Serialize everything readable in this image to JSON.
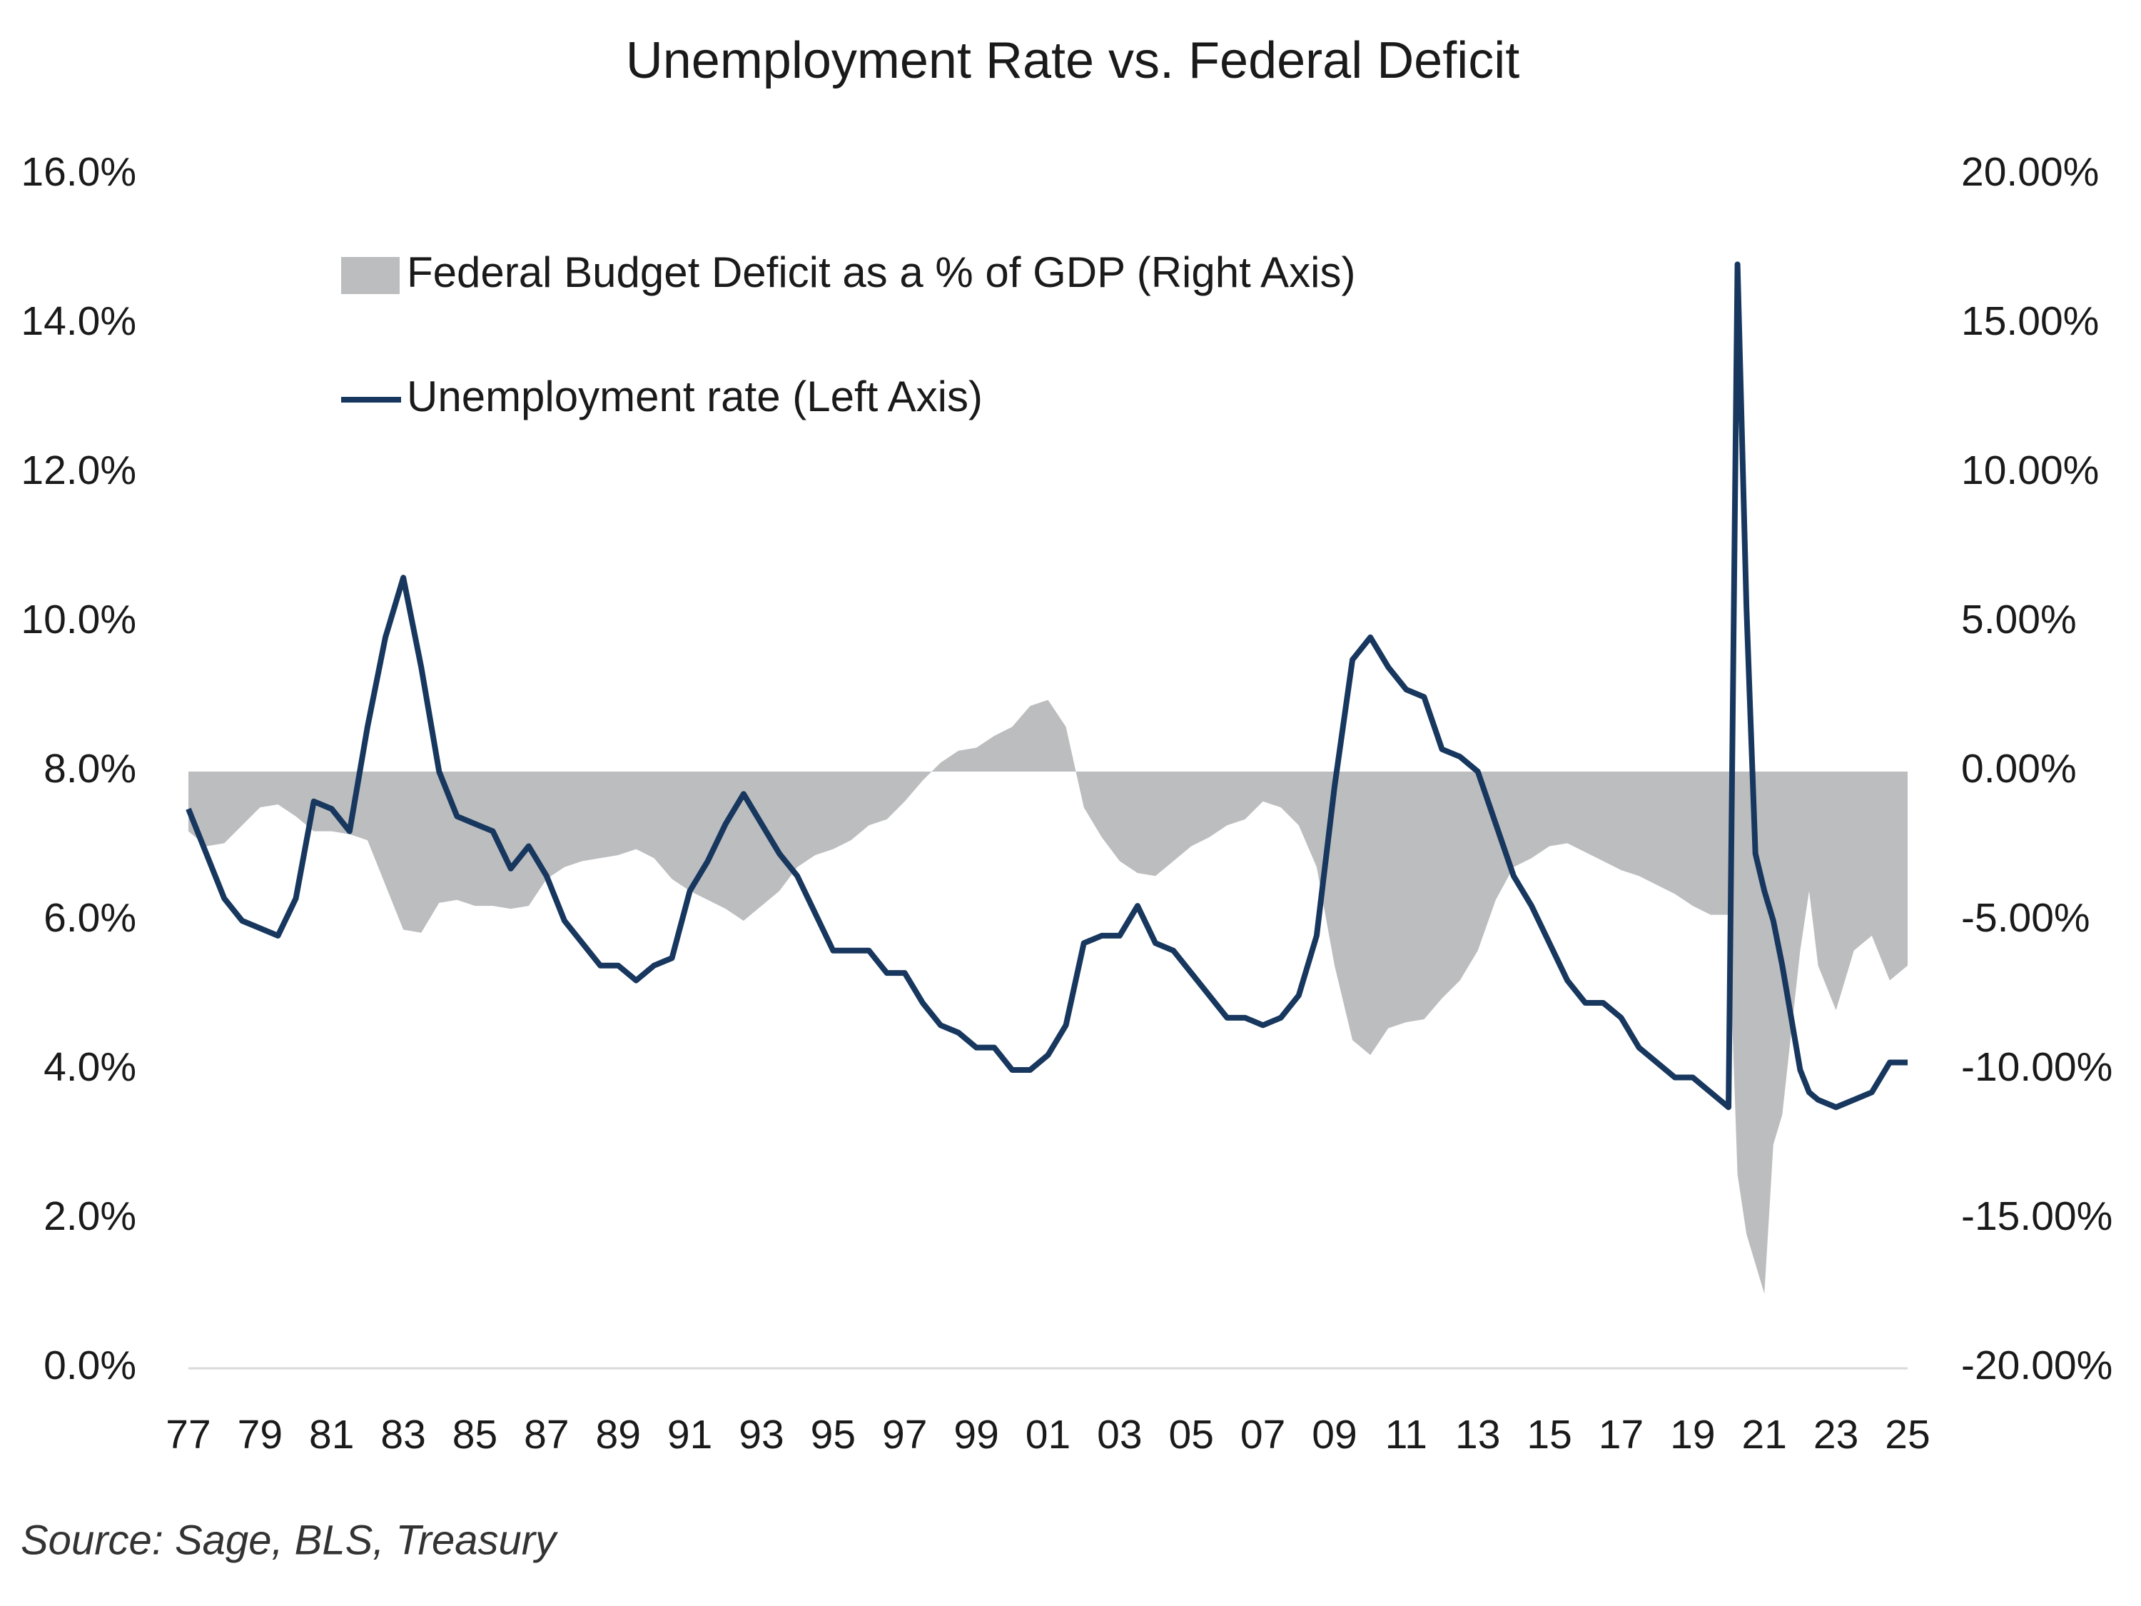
{
  "chart_data": {
    "type": "combo",
    "title": "Unemployment Rate vs. Federal Deficit",
    "source": "Source: Sage, BLS, Treasury",
    "x": [
      1977,
      1977.5,
      1978,
      1978.5,
      1979,
      1979.5,
      1980,
      1980.5,
      1981,
      1981.5,
      1982,
      1982.5,
      1983,
      1983.5,
      1984,
      1984.5,
      1985,
      1985.5,
      1986,
      1986.5,
      1987,
      1987.5,
      1988,
      1988.5,
      1989,
      1989.5,
      1990,
      1990.5,
      1991,
      1991.5,
      1992,
      1992.5,
      1993,
      1993.5,
      1994,
      1994.5,
      1995,
      1995.5,
      1996,
      1996.5,
      1997,
      1997.5,
      1998,
      1998.5,
      1999,
      1999.5,
      2000,
      2000.5,
      2001,
      2001.5,
      2002,
      2002.5,
      2003,
      2003.5,
      2004,
      2004.5,
      2005,
      2005.5,
      2006,
      2006.5,
      2007,
      2007.5,
      2008,
      2008.5,
      2009,
      2009.5,
      2010,
      2010.5,
      2011,
      2011.5,
      2012,
      2012.5,
      2013,
      2013.5,
      2014,
      2014.5,
      2015,
      2015.5,
      2016,
      2016.5,
      2017,
      2017.5,
      2018,
      2018.5,
      2019,
      2019.5,
      2020,
      2020.25,
      2020.5,
      2020.75,
      2021,
      2021.25,
      2021.5,
      2022,
      2022.25,
      2022.5,
      2023,
      2023.5,
      2024,
      2024.5,
      2025
    ],
    "series": [
      {
        "name": "Federal Budget Deficit as a % of GDP (Right Axis)",
        "type": "area",
        "axis": "y2",
        "color": "#bcbdbf",
        "values": [
          -2.0,
          -2.5,
          -2.4,
          -1.8,
          -1.2,
          -1.1,
          -1.5,
          -2.0,
          -2.0,
          -2.1,
          -2.3,
          -3.8,
          -5.3,
          -5.4,
          -4.4,
          -4.3,
          -4.5,
          -4.5,
          -4.6,
          -4.5,
          -3.6,
          -3.2,
          -3.0,
          -2.9,
          -2.8,
          -2.6,
          -2.9,
          -3.6,
          -4.0,
          -4.3,
          -4.6,
          -5.0,
          -4.5,
          -4.0,
          -3.2,
          -2.8,
          -2.6,
          -2.3,
          -1.8,
          -1.6,
          -1.0,
          -0.3,
          0.3,
          0.7,
          0.8,
          1.2,
          1.5,
          2.2,
          2.4,
          1.5,
          -1.2,
          -2.2,
          -3.0,
          -3.4,
          -3.5,
          -3.0,
          -2.5,
          -2.2,
          -1.8,
          -1.6,
          -1.0,
          -1.2,
          -1.8,
          -3.2,
          -6.5,
          -9.0,
          -9.5,
          -8.6,
          -8.4,
          -8.3,
          -7.6,
          -7.0,
          -6.0,
          -4.3,
          -3.2,
          -2.9,
          -2.5,
          -2.4,
          -2.7,
          -3.0,
          -3.3,
          -3.5,
          -3.8,
          -4.1,
          -4.5,
          -4.8,
          -4.8,
          -13.5,
          -15.5,
          -16.5,
          -17.5,
          -12.5,
          -11.5,
          -6.0,
          -4.0,
          -6.5,
          -8.0,
          -6.0,
          -5.5,
          -7.0,
          -6.5
        ]
      },
      {
        "name": "Unemployment rate (Left Axis)",
        "type": "line",
        "axis": "y",
        "color": "#17375e",
        "values": [
          7.5,
          6.9,
          6.3,
          6.0,
          5.9,
          5.8,
          6.3,
          7.6,
          7.5,
          7.2,
          8.6,
          9.8,
          10.6,
          9.4,
          8.0,
          7.4,
          7.3,
          7.2,
          6.7,
          7.0,
          6.6,
          6.0,
          5.7,
          5.4,
          5.4,
          5.2,
          5.4,
          5.5,
          6.4,
          6.8,
          7.3,
          7.7,
          7.3,
          6.9,
          6.6,
          6.1,
          5.6,
          5.6,
          5.6,
          5.3,
          5.3,
          4.9,
          4.6,
          4.5,
          4.3,
          4.3,
          4.0,
          4.0,
          4.2,
          4.6,
          5.7,
          5.8,
          5.8,
          6.2,
          5.7,
          5.6,
          5.3,
          5.0,
          4.7,
          4.7,
          4.6,
          4.7,
          5.0,
          5.8,
          7.8,
          9.5,
          9.8,
          9.4,
          9.1,
          9.0,
          8.3,
          8.2,
          8.0,
          7.3,
          6.6,
          6.2,
          5.7,
          5.2,
          4.9,
          4.9,
          4.7,
          4.3,
          4.1,
          3.9,
          3.9,
          3.7,
          3.5,
          14.8,
          10.2,
          6.9,
          6.4,
          6.0,
          5.4,
          4.0,
          3.7,
          3.6,
          3.5,
          3.6,
          3.7,
          4.1,
          4.1
        ]
      }
    ],
    "xlim": [
      1977,
      2025
    ],
    "xticks": [
      {
        "value": 1977,
        "label": "77"
      },
      {
        "value": 1979,
        "label": "79"
      },
      {
        "value": 1981,
        "label": "81"
      },
      {
        "value": 1983,
        "label": "83"
      },
      {
        "value": 1985,
        "label": "85"
      },
      {
        "value": 1987,
        "label": "87"
      },
      {
        "value": 1989,
        "label": "89"
      },
      {
        "value": 1991,
        "label": "91"
      },
      {
        "value": 1993,
        "label": "93"
      },
      {
        "value": 1995,
        "label": "95"
      },
      {
        "value": 1997,
        "label": "97"
      },
      {
        "value": 1999,
        "label": "99"
      },
      {
        "value": 2001,
        "label": "01"
      },
      {
        "value": 2003,
        "label": "03"
      },
      {
        "value": 2005,
        "label": "05"
      },
      {
        "value": 2007,
        "label": "07"
      },
      {
        "value": 2009,
        "label": "09"
      },
      {
        "value": 2011,
        "label": "11"
      },
      {
        "value": 2013,
        "label": "13"
      },
      {
        "value": 2015,
        "label": "15"
      },
      {
        "value": 2017,
        "label": "17"
      },
      {
        "value": 2019,
        "label": "19"
      },
      {
        "value": 2021,
        "label": "21"
      },
      {
        "value": 2023,
        "label": "23"
      },
      {
        "value": 2025,
        "label": "25"
      }
    ],
    "ylim": [
      0,
      16
    ],
    "yticks": [
      {
        "value": 0,
        "label": "0.0%"
      },
      {
        "value": 2,
        "label": "2.0%"
      },
      {
        "value": 4,
        "label": "4.0%"
      },
      {
        "value": 6,
        "label": "6.0%"
      },
      {
        "value": 8,
        "label": "8.0%"
      },
      {
        "value": 10,
        "label": "10.0%"
      },
      {
        "value": 12,
        "label": "12.0%"
      },
      {
        "value": 14,
        "label": "14.0%"
      },
      {
        "value": 16,
        "label": "16.0%"
      }
    ],
    "y2lim": [
      -20,
      20
    ],
    "y2ticks": [
      {
        "value": -20,
        "label": "-20.00%"
      },
      {
        "value": -15,
        "label": "-15.00%"
      },
      {
        "value": -10,
        "label": "-10.00%"
      },
      {
        "value": -5,
        "label": "-5.00%"
      },
      {
        "value": 0,
        "label": "0.00%"
      },
      {
        "value": 5,
        "label": "5.00%"
      },
      {
        "value": 10,
        "label": "10.00%"
      },
      {
        "value": 15,
        "label": "15.00%"
      },
      {
        "value": 20,
        "label": "20.00%"
      }
    ],
    "grid": false
  }
}
